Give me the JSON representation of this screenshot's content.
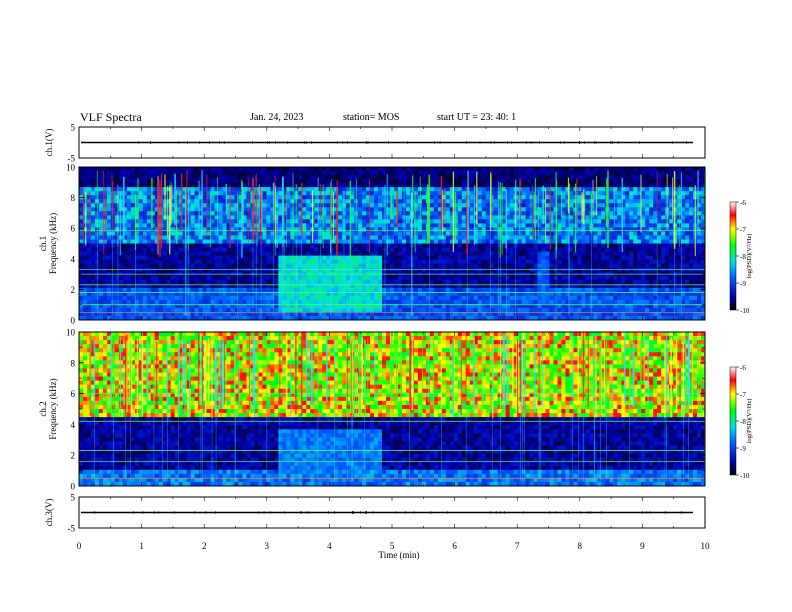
{
  "header": {
    "title": "VLF Spectra",
    "date": "Jan. 24, 2023",
    "station": "station= MOS",
    "start": "start UT =  23: 40: 1"
  },
  "chart_data": [
    {
      "type": "line",
      "panel": "ch1-waveform",
      "ylabel": "ch.1(V)",
      "ylim": [
        -5,
        5
      ],
      "yticks": [
        "5",
        "-5"
      ],
      "x": [
        0,
        10
      ],
      "series": [
        {
          "values": [
            0,
            0
          ]
        }
      ]
    },
    {
      "type": "heatmap",
      "panel": "ch1-spectrogram",
      "ylabel": "ch.1 Frequency (kHz)",
      "ylim": [
        0,
        10
      ],
      "yticks": [
        "0",
        "2",
        "4",
        "6",
        "8",
        "10"
      ],
      "xlim": [
        0,
        10
      ],
      "colorbar": {
        "label": "log(PSD)(V²/Hz)",
        "ticks": [
          "-6",
          "-7",
          "-8",
          "-9",
          "-10"
        ],
        "range": [
          -10,
          -6
        ]
      },
      "features": [
        {
          "t_start": 3.2,
          "t_end": 4.85,
          "f_low": 0.5,
          "f_high": 4.3,
          "level": -8.3
        },
        {
          "t_start": 7.35,
          "t_end": 7.5,
          "f_low": 1.0,
          "f_high": 4.5,
          "level": -9.0
        }
      ],
      "lines_khz": [
        0.5,
        1.0,
        1.8,
        2.3,
        3.0,
        3.3,
        5.85
      ]
    },
    {
      "type": "heatmap",
      "panel": "ch2-spectrogram",
      "ylabel": "ch.2 Frequency (kHz)",
      "ylim": [
        0,
        10
      ],
      "yticks": [
        "0",
        "2",
        "4",
        "6",
        "8",
        "10"
      ],
      "xlim": [
        0,
        10
      ],
      "colorbar": {
        "label": "log(PSD)(V²/Hz)",
        "ticks": [
          "-6",
          "-7",
          "-8",
          "-9",
          "-10"
        ],
        "range": [
          -10,
          -6
        ]
      },
      "features": [
        {
          "t_start": 3.2,
          "t_end": 4.85,
          "f_low": 0.8,
          "f_high": 3.6,
          "level": -8.8
        }
      ],
      "lines_khz": [
        0.5,
        1.6,
        2.3,
        4.2,
        6.0
      ]
    },
    {
      "type": "line",
      "panel": "ch3-waveform",
      "ylabel": "ch.3(V)",
      "ylim": [
        -5,
        5
      ],
      "yticks": [
        "5",
        "-5"
      ],
      "x": [
        0,
        10
      ],
      "series": [
        {
          "values": [
            0,
            0
          ]
        }
      ]
    }
  ],
  "xaxis": {
    "label": "Time  (min)",
    "ticks": [
      "0",
      "1",
      "2",
      "3",
      "4",
      "5",
      "6",
      "7",
      "8",
      "9",
      "10"
    ],
    "xlim": [
      0,
      10
    ]
  }
}
